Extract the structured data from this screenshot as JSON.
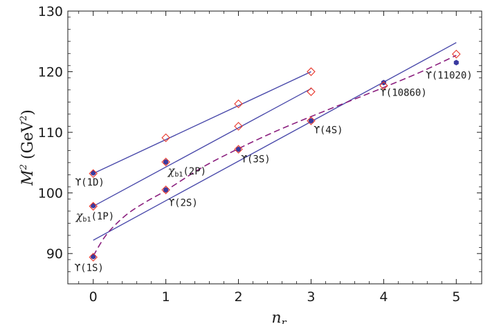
{
  "chart_data": {
    "type": "scatter",
    "title": "",
    "xlabel": "n_r",
    "ylabel": "M^2 (GeV^2)",
    "xlim": [
      -0.35,
      5.35
    ],
    "ylim": [
      85,
      130
    ],
    "xticks": [
      0,
      1,
      2,
      3,
      4,
      5
    ],
    "yticks": [
      90,
      100,
      110,
      120,
      130
    ],
    "grid": false,
    "legend": "none",
    "colors": {
      "experiment": "#3a3aa0",
      "theory": "#e8372b",
      "fit_lines": "#4b4bab",
      "screened_curve": "#8b1f7e"
    },
    "series": [
      {
        "kind": "experiment-points",
        "x": [
          0,
          1,
          2,
          3,
          4,
          5
        ],
        "y": [
          89.5,
          100.5,
          107.2,
          111.9,
          118.2,
          121.5
        ]
      },
      {
        "kind": "experiment-points",
        "x": [
          0,
          1
        ],
        "y": [
          97.9,
          105.1
        ]
      },
      {
        "kind": "experiment-points",
        "x": [
          0
        ],
        "y": [
          103.3
        ]
      },
      {
        "kind": "theory-points",
        "x": [
          0,
          1,
          2,
          3,
          4,
          5
        ],
        "y": [
          89.4,
          100.5,
          107.2,
          111.9,
          117.7,
          122.9
        ]
      },
      {
        "kind": "theory-points",
        "x": [
          0,
          1,
          2,
          3
        ],
        "y": [
          97.8,
          105.1,
          111.0,
          116.7
        ]
      },
      {
        "kind": "theory-points",
        "x": [
          0,
          1,
          2,
          3
        ],
        "y": [
          103.2,
          109.1,
          114.7,
          120.0
        ]
      },
      {
        "kind": "linear-fit",
        "x": [
          0,
          5
        ],
        "y": [
          92.2,
          124.8
        ]
      },
      {
        "kind": "linear-fit",
        "x": [
          0,
          3
        ],
        "y": [
          97.8,
          117.2
        ]
      },
      {
        "kind": "linear-fit",
        "x": [
          0,
          3
        ],
        "y": [
          103.2,
          120.0
        ]
      },
      {
        "kind": "screened-curve",
        "x": [
          0,
          0.15,
          0.3,
          0.5,
          0.75,
          1,
          1.5,
          2,
          2.5,
          3,
          3.5,
          4,
          4.5,
          5
        ],
        "y": [
          89.6,
          92.6,
          94.7,
          96.8,
          98.7,
          100.4,
          104.2,
          107.3,
          110.1,
          112.6,
          115.0,
          117.4,
          119.9,
          122.7
        ]
      }
    ],
    "annotations": [
      {
        "text": "ϒ(1S)",
        "x": 0,
        "y": 89.5
      },
      {
        "text": "χb1(1P)",
        "x": 0,
        "y": 97.9
      },
      {
        "text": "ϒ(1D)",
        "x": 0,
        "y": 103.3
      },
      {
        "text": "ϒ(2S)",
        "x": 1,
        "y": 100.5
      },
      {
        "text": "χb1(2P)",
        "x": 1,
        "y": 105.1
      },
      {
        "text": "ϒ(3S)",
        "x": 2,
        "y": 107.2
      },
      {
        "text": "ϒ(4S)",
        "x": 3,
        "y": 111.9
      },
      {
        "text": "ϒ(10860)",
        "x": 4,
        "y": 118.2
      },
      {
        "text": "ϒ(11020)",
        "x": 5,
        "y": 121.5
      }
    ]
  }
}
